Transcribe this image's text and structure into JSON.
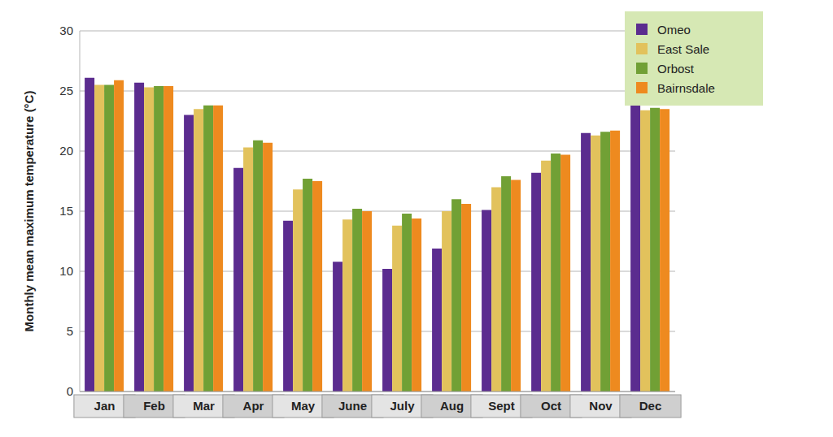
{
  "chart_data": {
    "type": "bar",
    "y_label": "Monthly mean maximum temperature (°C)",
    "categories": [
      "Jan",
      "Feb",
      "Mar",
      "Apr",
      "May",
      "June",
      "July",
      "Aug",
      "Sept",
      "Oct",
      "Nov",
      "Dec"
    ],
    "series": [
      {
        "name": "Omeo",
        "color": "#5b2c8f",
        "values": [
          26.1,
          25.7,
          23.0,
          18.6,
          14.2,
          10.8,
          10.2,
          11.9,
          15.1,
          18.2,
          21.5,
          24.2
        ]
      },
      {
        "name": "East Sale",
        "color": "#e2c25c",
        "values": [
          25.5,
          25.3,
          23.5,
          20.3,
          16.8,
          14.3,
          13.8,
          15.0,
          17.0,
          19.2,
          21.3,
          23.4
        ]
      },
      {
        "name": "Orbost",
        "color": "#71a035",
        "values": [
          25.5,
          25.4,
          23.8,
          20.9,
          17.7,
          15.2,
          14.8,
          16.0,
          17.9,
          19.8,
          21.6,
          23.6
        ]
      },
      {
        "name": "Bairnsdale",
        "color": "#ee8a1f",
        "values": [
          25.9,
          25.4,
          23.8,
          20.7,
          17.5,
          15.0,
          14.4,
          15.6,
          17.6,
          19.7,
          21.7,
          23.5
        ]
      }
    ],
    "ylim": [
      0,
      30
    ],
    "yticks": [
      0,
      5,
      10,
      15,
      20,
      25,
      30
    ],
    "grid": true,
    "legend": "upper right"
  }
}
